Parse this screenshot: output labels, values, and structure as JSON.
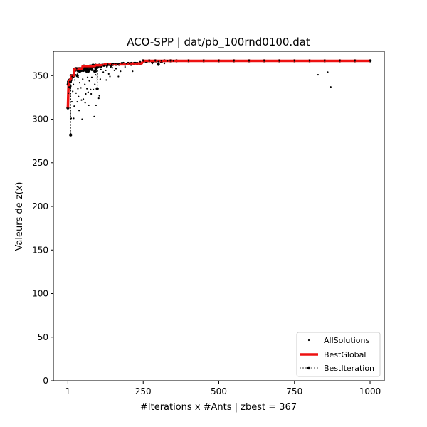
{
  "chart_data": {
    "type": "scatter",
    "title": "ACO-SPP | dat/pb_100rnd0100.dat",
    "xlabel": "#Iterations x #Ants | zbest = 367",
    "ylabel": "Valeurs de z(x)",
    "xlim": [
      -47,
      1047
    ],
    "ylim": [
      0,
      378
    ],
    "xticks": [
      1,
      250,
      500,
      750,
      1000
    ],
    "yticks": [
      0,
      50,
      100,
      150,
      200,
      250,
      300,
      350
    ],
    "grid": false,
    "legend_position": "bottom-right",
    "legend": [
      "AllSolutions",
      "BestGlobal",
      "BestIteration"
    ],
    "series": [
      {
        "name": "AllSolutions",
        "kind": "scatter",
        "color": "#000000",
        "points": [
          [
            1,
            313
          ],
          [
            3,
            330
          ],
          [
            5,
            337
          ],
          [
            7,
            343
          ],
          [
            9,
            335
          ],
          [
            10,
            282
          ],
          [
            12,
            301
          ],
          [
            14,
            320
          ],
          [
            15,
            349
          ],
          [
            17,
            332
          ],
          [
            19,
            340
          ],
          [
            20,
            301
          ],
          [
            22,
            315
          ],
          [
            24,
            345
          ],
          [
            26,
            351
          ],
          [
            28,
            330
          ],
          [
            30,
            358
          ],
          [
            32,
            320
          ],
          [
            34,
            335
          ],
          [
            35,
            348
          ],
          [
            36,
            326
          ],
          [
            38,
            310
          ],
          [
            40,
            342
          ],
          [
            42,
            355
          ],
          [
            44,
            336
          ],
          [
            46,
            322
          ],
          [
            48,
            300
          ],
          [
            50,
            346
          ],
          [
            52,
            323
          ],
          [
            55,
            357
          ],
          [
            57,
            340
          ],
          [
            58,
            319
          ],
          [
            60,
            329
          ],
          [
            62,
            354
          ],
          [
            64,
            335
          ],
          [
            66,
            348
          ],
          [
            68,
            331
          ],
          [
            70,
            316
          ],
          [
            72,
            344
          ],
          [
            74,
            357
          ],
          [
            76,
            334
          ],
          [
            78,
            329
          ],
          [
            80,
            348
          ],
          [
            83,
            357
          ],
          [
            85,
            334
          ],
          [
            88,
            303
          ],
          [
            90,
            340
          ],
          [
            92,
            351
          ],
          [
            94,
            316
          ],
          [
            96,
            355
          ],
          [
            98,
            336
          ],
          [
            100,
            359
          ],
          [
            103,
            324
          ],
          [
            105,
            327
          ],
          [
            108,
            346
          ],
          [
            110,
            357
          ],
          [
            112,
            360
          ],
          [
            115,
            362
          ],
          [
            118,
            354
          ],
          [
            120,
            361
          ],
          [
            123,
            362
          ],
          [
            126,
            356
          ],
          [
            128,
            345
          ],
          [
            130,
            360
          ],
          [
            133,
            363
          ],
          [
            136,
            352
          ],
          [
            138,
            362
          ],
          [
            140,
            349
          ],
          [
            143,
            360
          ],
          [
            146,
            363
          ],
          [
            148,
            359
          ],
          [
            150,
            364
          ],
          [
            152,
            364
          ],
          [
            155,
            356
          ],
          [
            158,
            364
          ],
          [
            160,
            358
          ],
          [
            163,
            364
          ],
          [
            166,
            363
          ],
          [
            168,
            349
          ],
          [
            170,
            364
          ],
          [
            175,
            355
          ],
          [
            180,
            364
          ],
          [
            185,
            365
          ],
          [
            190,
            360
          ],
          [
            195,
            364
          ],
          [
            200,
            365
          ],
          [
            205,
            364
          ],
          [
            210,
            365
          ],
          [
            215,
            355
          ],
          [
            220,
            365
          ],
          [
            225,
            365
          ],
          [
            230,
            365
          ],
          [
            240,
            366
          ],
          [
            250,
            367
          ],
          [
            260,
            365
          ],
          [
            270,
            367
          ],
          [
            280,
            364
          ],
          [
            290,
            367
          ],
          [
            300,
            366
          ],
          [
            310,
            367
          ],
          [
            320,
            364
          ],
          [
            330,
            367
          ],
          [
            340,
            367
          ],
          [
            350,
            367
          ],
          [
            400,
            367
          ],
          [
            450,
            367
          ],
          [
            500,
            367
          ],
          [
            550,
            367
          ],
          [
            600,
            367
          ],
          [
            650,
            367
          ],
          [
            700,
            367
          ],
          [
            750,
            367
          ],
          [
            800,
            367
          ],
          [
            828,
            351
          ],
          [
            850,
            367
          ],
          [
            860,
            354
          ],
          [
            870,
            337
          ],
          [
            900,
            367
          ],
          [
            950,
            367
          ],
          [
            1000,
            367
          ]
        ]
      },
      {
        "name": "BestGlobal",
        "kind": "line",
        "color": "#ee1111",
        "points": [
          [
            1,
            313
          ],
          [
            3,
            338
          ],
          [
            6,
            344
          ],
          [
            10,
            346
          ],
          [
            14,
            350
          ],
          [
            20,
            350
          ],
          [
            22,
            357
          ],
          [
            28,
            357
          ],
          [
            30,
            358
          ],
          [
            48,
            358
          ],
          [
            50,
            361
          ],
          [
            90,
            361
          ],
          [
            92,
            362
          ],
          [
            120,
            362
          ],
          [
            122,
            363
          ],
          [
            190,
            363
          ],
          [
            200,
            364
          ],
          [
            245,
            364
          ],
          [
            250,
            367
          ],
          [
            1000,
            367
          ]
        ]
      },
      {
        "name": "BestIteration",
        "kind": "dashed-line-markers",
        "color": "#000000",
        "points": [
          [
            1,
            313
          ],
          [
            2,
            340
          ],
          [
            3,
            343
          ],
          [
            4,
            336
          ],
          [
            5,
            344
          ],
          [
            6,
            342
          ],
          [
            7,
            345
          ],
          [
            8,
            338
          ],
          [
            9,
            343
          ],
          [
            10,
            282
          ],
          [
            11,
            345
          ],
          [
            12,
            350
          ],
          [
            14,
            348
          ],
          [
            16,
            350
          ],
          [
            18,
            349
          ],
          [
            20,
            350
          ],
          [
            22,
            357
          ],
          [
            24,
            356
          ],
          [
            26,
            358
          ],
          [
            28,
            357
          ],
          [
            30,
            358
          ],
          [
            32,
            350
          ],
          [
            34,
            356
          ],
          [
            36,
            357
          ],
          [
            38,
            358
          ],
          [
            40,
            355
          ],
          [
            42,
            358
          ],
          [
            44,
            357
          ],
          [
            46,
            356
          ],
          [
            48,
            357
          ],
          [
            50,
            358
          ],
          [
            52,
            356
          ],
          [
            54,
            361
          ],
          [
            56,
            359
          ],
          [
            58,
            360
          ],
          [
            60,
            356
          ],
          [
            62,
            358
          ],
          [
            64,
            357
          ],
          [
            66,
            359
          ],
          [
            68,
            355
          ],
          [
            70,
            356
          ],
          [
            72,
            360
          ],
          [
            74,
            361
          ],
          [
            76,
            359
          ],
          [
            78,
            361
          ],
          [
            80,
            357
          ],
          [
            82,
            361
          ],
          [
            84,
            362
          ],
          [
            86,
            361
          ],
          [
            88,
            360
          ],
          [
            90,
            355
          ],
          [
            92,
            362
          ],
          [
            94,
            358
          ],
          [
            96,
            361
          ],
          [
            98,
            335
          ],
          [
            100,
            360
          ],
          [
            102,
            361
          ],
          [
            105,
            362
          ],
          [
            110,
            361
          ],
          [
            115,
            362
          ],
          [
            120,
            362
          ],
          [
            125,
            363
          ],
          [
            130,
            362
          ],
          [
            135,
            363
          ],
          [
            140,
            363
          ],
          [
            145,
            362
          ],
          [
            150,
            363
          ],
          [
            160,
            363
          ],
          [
            170,
            363
          ],
          [
            180,
            364
          ],
          [
            190,
            363
          ],
          [
            200,
            364
          ],
          [
            210,
            363
          ],
          [
            220,
            364
          ],
          [
            230,
            364
          ],
          [
            240,
            364
          ],
          [
            250,
            367
          ],
          [
            260,
            366
          ],
          [
            270,
            367
          ],
          [
            280,
            366
          ],
          [
            290,
            367
          ],
          [
            300,
            363
          ],
          [
            310,
            366
          ],
          [
            320,
            367
          ],
          [
            340,
            367
          ],
          [
            360,
            367
          ],
          [
            400,
            367
          ],
          [
            450,
            367
          ],
          [
            500,
            367
          ],
          [
            550,
            367
          ],
          [
            600,
            367
          ],
          [
            650,
            367
          ],
          [
            700,
            367
          ],
          [
            750,
            367
          ],
          [
            800,
            367
          ],
          [
            850,
            367
          ],
          [
            900,
            367
          ],
          [
            950,
            367
          ],
          [
            1000,
            367
          ]
        ]
      }
    ]
  }
}
